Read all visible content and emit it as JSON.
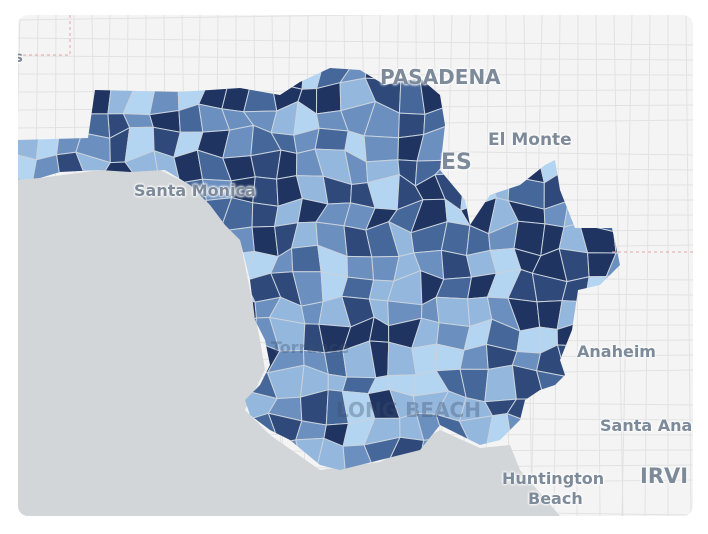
{
  "map": {
    "type": "choropleth",
    "colors": {
      "land": "#f4f4f4",
      "water": "#d3d6d8",
      "roads": "#e2e2e2",
      "region_border": "#c9d2dd",
      "scale": [
        "#b3d5f2",
        "#94b7dd",
        "#6b8fbf",
        "#45679a",
        "#2f4a7a",
        "#1f3461"
      ]
    },
    "place_labels": {
      "left_edge": "s",
      "pasadena": "PASADENA",
      "el_monte": "El Monte",
      "los_angeles": "ES",
      "santa_monica": "Santa Monica",
      "torrance": "Torrance",
      "long_beach": "LONG BEACH",
      "anaheim": "Anaheim",
      "santa_ana": "Santa Ana",
      "huntington": "Huntington",
      "huntington_beach": "Beach",
      "irvine": "IRVI"
    }
  }
}
